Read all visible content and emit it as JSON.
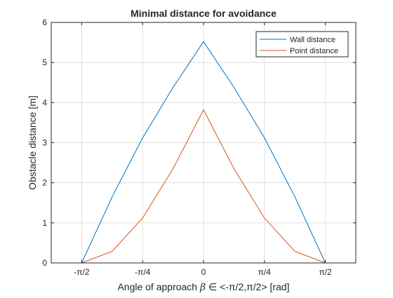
{
  "chart_data": {
    "type": "line",
    "title": "Minimal distance for avoidance",
    "xlabel": "Angle of approach β ∈ <-π/2,π/2> [rad]",
    "xlabel_parts": {
      "pre": "Angle of approach ",
      "beta": "β",
      "rest": " ∈ <-π/2,π/2> [rad]"
    },
    "ylabel": "Obstacle distance [m]",
    "xlim": [
      -1.9635,
      1.9635
    ],
    "ylim": [
      0,
      6
    ],
    "x_ticks": [
      {
        "value": -1.5708,
        "label": "-π/2"
      },
      {
        "value": -0.7854,
        "label": "-π/4"
      },
      {
        "value": 0,
        "label": "0"
      },
      {
        "value": 0.7854,
        "label": "π/4"
      },
      {
        "value": 1.5708,
        "label": "π/2"
      }
    ],
    "y_ticks": [
      {
        "value": 0,
        "label": "0"
      },
      {
        "value": 1,
        "label": "1"
      },
      {
        "value": 2,
        "label": "2"
      },
      {
        "value": 3,
        "label": "3"
      },
      {
        "value": 4,
        "label": "4"
      },
      {
        "value": 5,
        "label": "5"
      },
      {
        "value": 6,
        "label": "6"
      }
    ],
    "grid": true,
    "legend_position": "top-right",
    "x": [
      -1.5708,
      -1.1781,
      -0.7854,
      -0.3927,
      0,
      0.3927,
      0.7854,
      1.1781,
      1.5708
    ],
    "series": [
      {
        "name": "Wall distance",
        "color": "#0072BD",
        "values": [
          0.0,
          1.65,
          3.12,
          4.38,
          5.52,
          4.38,
          3.12,
          1.65,
          0.0
        ]
      },
      {
        "name": "Point distance",
        "color": "#D95319",
        "values": [
          0.0,
          0.29,
          1.12,
          2.35,
          3.82,
          2.35,
          1.12,
          0.29,
          0.0
        ]
      }
    ]
  }
}
